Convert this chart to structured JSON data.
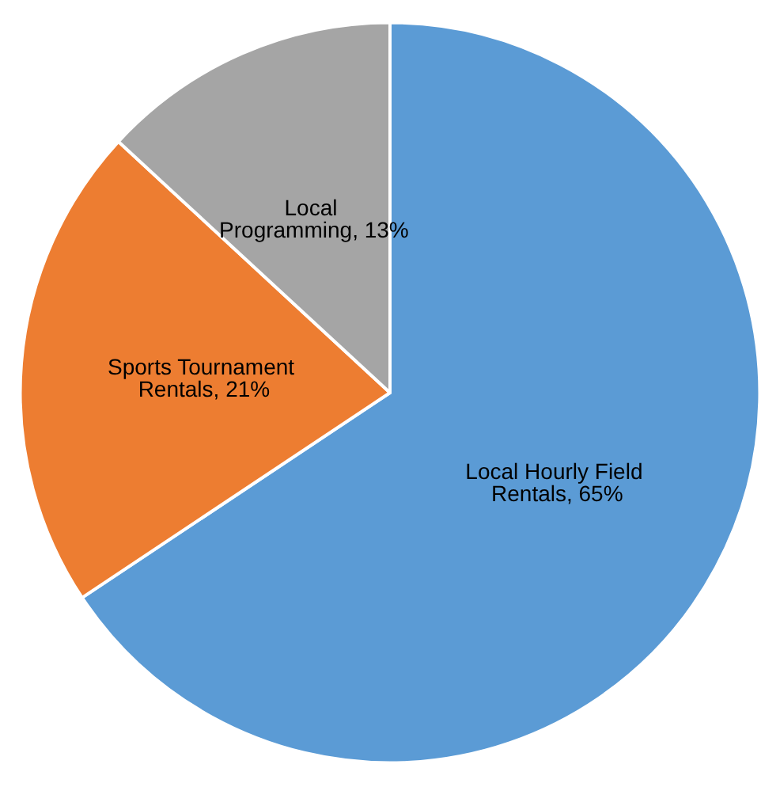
{
  "chart_data": {
    "type": "pie",
    "categories": [
      "Local Hourly Field Rentals",
      "Sports Tournament Rentals",
      "Local Programming"
    ],
    "values": [
      65,
      21,
      13
    ],
    "value_labels": [
      "65%",
      "21%",
      "13%"
    ],
    "colors": [
      "#5b9bd5",
      "#ed7d31",
      "#a5a5a5"
    ],
    "legend": false
  }
}
